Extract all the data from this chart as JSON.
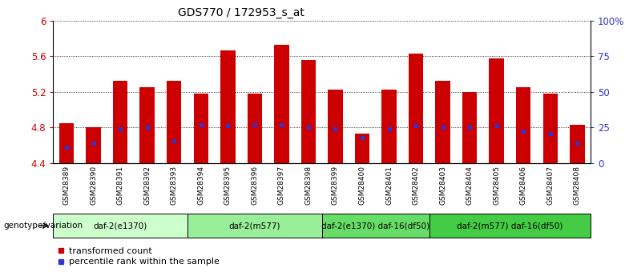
{
  "title": "GDS770 / 172953_s_at",
  "samples": [
    "GSM28389",
    "GSM28390",
    "GSM28391",
    "GSM28392",
    "GSM28393",
    "GSM28394",
    "GSM28395",
    "GSM28396",
    "GSM28397",
    "GSM28398",
    "GSM28399",
    "GSM28400",
    "GSM28401",
    "GSM28402",
    "GSM28403",
    "GSM28404",
    "GSM28405",
    "GSM28406",
    "GSM28407",
    "GSM28408"
  ],
  "bar_values": [
    4.85,
    4.8,
    5.32,
    5.25,
    5.32,
    5.18,
    5.67,
    5.18,
    5.73,
    5.56,
    5.22,
    4.73,
    5.22,
    5.63,
    5.32,
    5.2,
    5.58,
    5.25,
    5.18,
    4.83
  ],
  "blue_values": [
    4.58,
    4.62,
    4.78,
    4.8,
    4.65,
    4.83,
    4.82,
    4.83,
    4.83,
    4.8,
    4.78,
    4.68,
    4.78,
    4.82,
    4.8,
    4.8,
    4.82,
    4.76,
    4.73,
    4.62
  ],
  "ymin": 4.4,
  "ymax": 6.0,
  "yticks_left": [
    4.4,
    4.8,
    5.2,
    5.6,
    6.0
  ],
  "ytick_labels_left": [
    "4.4",
    "4.8",
    "5.2",
    "5.6",
    "6"
  ],
  "yticks_right_pct": [
    0,
    25,
    50,
    75,
    100
  ],
  "ytick_labels_right": [
    "0",
    "25",
    "50",
    "75",
    "100%"
  ],
  "bar_color": "#cc0000",
  "blue_color": "#3333cc",
  "bar_width": 0.55,
  "groups": [
    {
      "label": "daf-2(e1370)",
      "start": 0,
      "end": 5,
      "color": "#ccffcc"
    },
    {
      "label": "daf-2(m577)",
      "start": 5,
      "end": 10,
      "color": "#99ee99"
    },
    {
      "label": "daf-2(e1370) daf-16(df50)",
      "start": 10,
      "end": 14,
      "color": "#66dd66"
    },
    {
      "label": "daf-2(m577) daf-16(df50)",
      "start": 14,
      "end": 20,
      "color": "#44cc44"
    }
  ],
  "genotype_label": "genotype/variation",
  "legend_items": [
    {
      "label": "transformed count",
      "color": "#cc0000"
    },
    {
      "label": "percentile rank within the sample",
      "color": "#3333cc"
    }
  ],
  "grid_color": "#000000",
  "bg_color": "#ffffff",
  "xtick_bg_color": "#c8c8c8",
  "left_tick_color": "#cc0000",
  "right_tick_color": "#3333cc"
}
